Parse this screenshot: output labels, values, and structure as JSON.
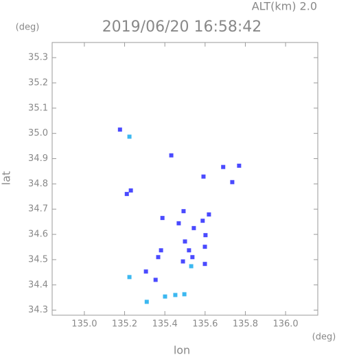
{
  "chart_data": {
    "type": "scatter",
    "annotation": "ALT(km) 2.0",
    "title": "2019/06/20 16:58:42",
    "y_unit": "(deg)",
    "x_unit": "(deg)",
    "ylabel": "lat",
    "xlabel": "lon",
    "xlim": [
      134.84,
      136.16
    ],
    "ylim": [
      34.28,
      35.36
    ],
    "xticks": [
      {
        "value": 135.0,
        "label": "135.0"
      },
      135.2,
      135.4,
      135.6,
      135.8,
      {
        "value": 136.0,
        "label": "136.0"
      }
    ],
    "yticks": [
      34.3,
      34.4,
      34.5,
      34.6,
      34.7,
      34.8,
      34.9,
      {
        "value": 35.0,
        "label": "35.0"
      },
      35.1,
      35.2,
      35.3
    ],
    "series": [
      {
        "color": "#4a4aff",
        "x": [
          135.177,
          135.432,
          135.69,
          135.769,
          135.592,
          135.735,
          135.231,
          135.211,
          135.493,
          135.388,
          135.619,
          135.544,
          135.602,
          135.5,
          135.52,
          135.537,
          135.49,
          135.599,
          135.599,
          135.381,
          135.306,
          135.354,
          135.367,
          135.469,
          135.588
        ],
        "y": [
          35.015,
          34.913,
          34.867,
          34.872,
          34.829,
          34.807,
          34.774,
          34.76,
          34.692,
          34.665,
          34.679,
          34.625,
          34.597,
          34.572,
          34.537,
          34.51,
          34.493,
          34.483,
          34.551,
          34.537,
          34.453,
          34.42,
          34.51,
          34.644,
          34.654
        ]
      },
      {
        "color": "#3cb8f0",
        "x": [
          135.224,
          135.531,
          135.224,
          135.401,
          135.452,
          135.497,
          135.31
        ],
        "y": [
          34.987,
          34.474,
          34.431,
          34.354,
          34.36,
          34.363,
          34.333
        ]
      }
    ]
  }
}
